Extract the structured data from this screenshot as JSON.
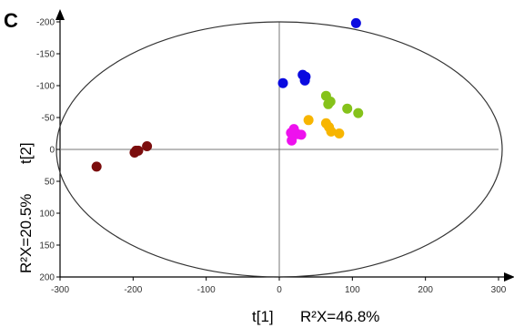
{
  "chart_data": {
    "type": "scatter",
    "panel_label": "C",
    "xlabel": "t[1]",
    "xlabel_r2": "R²X=46.8%",
    "ylabel": "t[2]",
    "ylabel_r2": "R²X=20.5%",
    "xlim": [
      -300,
      300
    ],
    "ylim": [
      -200,
      200
    ],
    "y_inverted": true,
    "x_ticks": [
      "-300",
      "-200",
      "-100",
      "0",
      "100",
      "200",
      "300"
    ],
    "x_tick_values": [
      -300,
      -200,
      -100,
      0,
      100,
      200,
      300
    ],
    "y_ticks": [
      "-200",
      "-150",
      "-100",
      "-50",
      "0",
      "50",
      "100",
      "150",
      "200"
    ],
    "y_tick_values": [
      -200,
      -150,
      -100,
      -50,
      0,
      50,
      100,
      150,
      200
    ],
    "ellipse": {
      "cx": 0,
      "cy": 0,
      "rx": 305,
      "ry": 200
    },
    "grid": false,
    "series": [
      {
        "color": "#7b0d0d",
        "points": [
          [
            -250,
            27
          ],
          [
            -198,
            5
          ],
          [
            -196,
            2
          ],
          [
            -193,
            2
          ],
          [
            -181,
            -5
          ]
        ]
      },
      {
        "color": "#0a0ae0",
        "points": [
          [
            105,
            -198
          ],
          [
            32,
            -117
          ],
          [
            36,
            -114
          ],
          [
            35,
            -108
          ],
          [
            5,
            -104
          ]
        ]
      },
      {
        "color": "#ee11ee",
        "points": [
          [
            17,
            -14
          ],
          [
            25,
            -24
          ],
          [
            16,
            -26
          ],
          [
            30,
            -23
          ],
          [
            20,
            -32
          ]
        ]
      },
      {
        "color": "#f7b500",
        "points": [
          [
            82,
            -25
          ],
          [
            71,
            -28
          ],
          [
            68,
            -35
          ],
          [
            64,
            -41
          ],
          [
            40,
            -46
          ]
        ]
      },
      {
        "color": "#85c21a",
        "points": [
          [
            108,
            -57
          ],
          [
            93,
            -64
          ],
          [
            70,
            -75
          ],
          [
            67,
            -71
          ],
          [
            64,
            -84
          ]
        ]
      }
    ]
  }
}
